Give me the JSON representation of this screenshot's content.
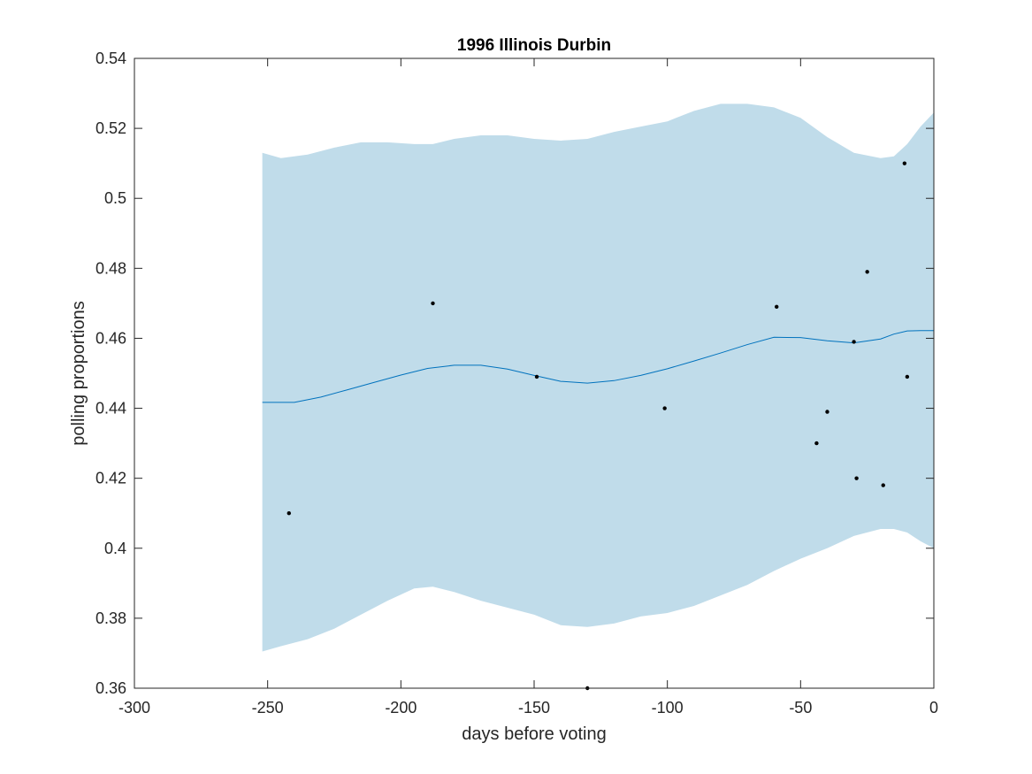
{
  "chart_data": {
    "type": "line",
    "title": "1996 Illinois Durbin",
    "xlabel": "days before voting",
    "ylabel": "polling proportions",
    "xlim": [
      -300,
      0
    ],
    "ylim": [
      0.36,
      0.54
    ],
    "xticks": [
      -300,
      -250,
      -200,
      -150,
      -100,
      -50,
      0
    ],
    "xtick_labels": [
      "-300",
      "-250",
      "-200",
      "-150",
      "-100",
      "-50",
      "0"
    ],
    "yticks": [
      0.36,
      0.38,
      0.4,
      0.42,
      0.44,
      0.46,
      0.48,
      0.5,
      0.52,
      0.54
    ],
    "ytick_labels": [
      "0.36",
      "0.38",
      "0.4",
      "0.42",
      "0.44",
      "0.46",
      "0.48",
      "0.5",
      "0.52",
      "0.54"
    ],
    "grid": false,
    "colors": {
      "band": "#c0dcea",
      "line": "#0072bd",
      "points": "#000000",
      "axes": "#262626"
    },
    "band": {
      "x": [
        -252,
        -245,
        -235,
        -225,
        -215,
        -205,
        -195,
        -188,
        -180,
        -170,
        -160,
        -150,
        -140,
        -130,
        -120,
        -110,
        -100,
        -90,
        -80,
        -70,
        -60,
        -50,
        -40,
        -30,
        -20,
        -15,
        -10,
        -5,
        0
      ],
      "upper": [
        0.513,
        0.5115,
        0.5125,
        0.5145,
        0.516,
        0.516,
        0.5155,
        0.5155,
        0.517,
        0.518,
        0.518,
        0.517,
        0.5165,
        0.517,
        0.519,
        0.5205,
        0.522,
        0.525,
        0.527,
        0.527,
        0.526,
        0.523,
        0.5175,
        0.513,
        0.5115,
        0.512,
        0.5155,
        0.5205,
        0.5245
      ],
      "lower": [
        0.3705,
        0.372,
        0.374,
        0.377,
        0.381,
        0.385,
        0.3885,
        0.389,
        0.3875,
        0.385,
        0.383,
        0.381,
        0.378,
        0.3775,
        0.3785,
        0.3805,
        0.3815,
        0.3835,
        0.3865,
        0.3895,
        0.3935,
        0.397,
        0.4,
        0.4035,
        0.4055,
        0.4055,
        0.4045,
        0.402,
        0.4
      ]
    },
    "series": [
      {
        "x": [
          -252,
          -240,
          -230,
          -220,
          -210,
          -200,
          -190,
          -180,
          -170,
          -160,
          -150,
          -140,
          -130,
          -120,
          -110,
          -100,
          -90,
          -80,
          -70,
          -60,
          -50,
          -40,
          -30,
          -20,
          -15,
          -10,
          -5,
          0
        ],
        "values": [
          0.4417,
          0.4417,
          0.4432,
          0.4453,
          0.4474,
          0.4495,
          0.4514,
          0.4523,
          0.4523,
          0.4512,
          0.4494,
          0.4477,
          0.4472,
          0.4479,
          0.4494,
          0.4513,
          0.4535,
          0.4558,
          0.4582,
          0.4603,
          0.4602,
          0.4593,
          0.4587,
          0.4598,
          0.4612,
          0.4621,
          0.4622,
          0.4622
        ]
      }
    ],
    "points": [
      {
        "x": -242,
        "y": 0.41
      },
      {
        "x": -188,
        "y": 0.47
      },
      {
        "x": -149,
        "y": 0.449
      },
      {
        "x": -130,
        "y": 0.36
      },
      {
        "x": -101,
        "y": 0.44
      },
      {
        "x": -59,
        "y": 0.469
      },
      {
        "x": -44,
        "y": 0.43
      },
      {
        "x": -40,
        "y": 0.439
      },
      {
        "x": -30,
        "y": 0.459
      },
      {
        "x": -29,
        "y": 0.42
      },
      {
        "x": -25,
        "y": 0.479
      },
      {
        "x": -19,
        "y": 0.418
      },
      {
        "x": -11,
        "y": 0.51
      },
      {
        "x": -10,
        "y": 0.449
      }
    ]
  }
}
